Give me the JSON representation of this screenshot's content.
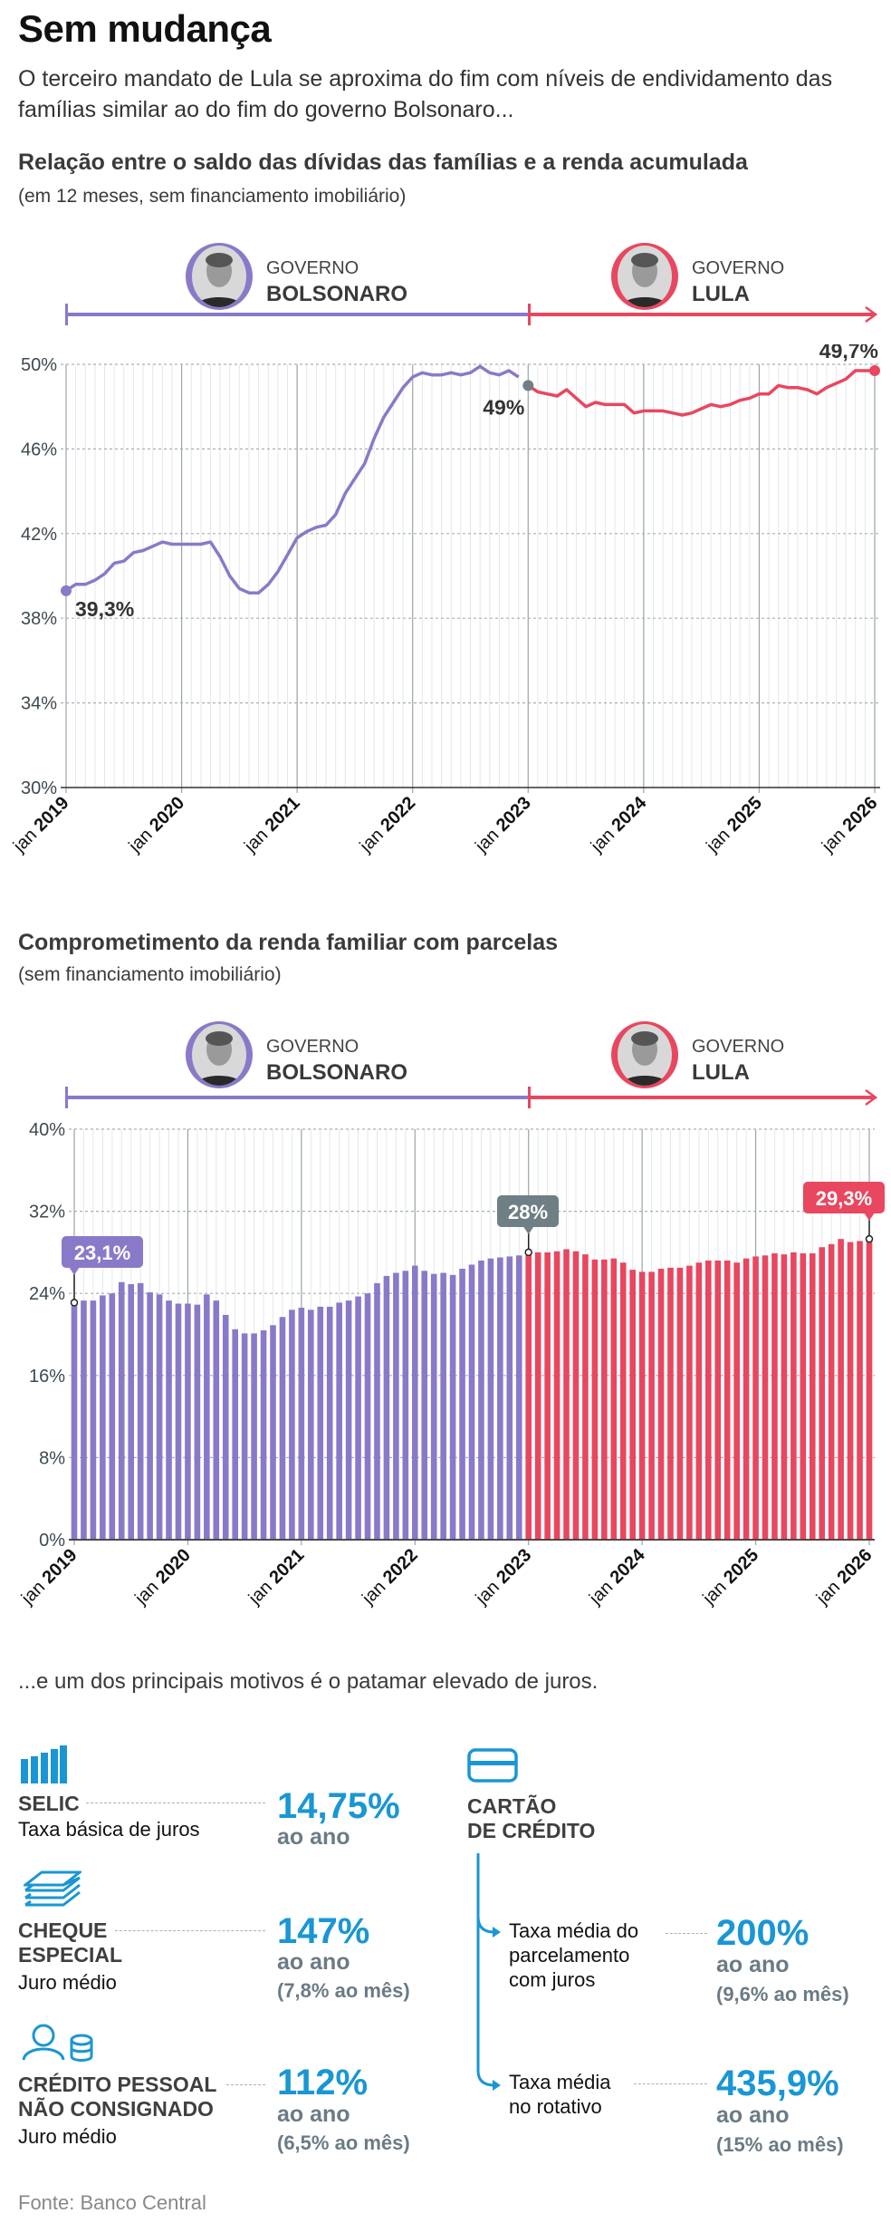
{
  "header": {
    "title": "Sem mudança",
    "subtitle": "O terceiro mandato de Lula se aproxima do fim com níveis de endividamento das famílias similar ao do fim do governo Bolsonaro..."
  },
  "governments": [
    {
      "prefix": "GOVERNO",
      "name": "BOLSONARO",
      "color": "#8a79c9",
      "photo_icon": "bolsonaro-portrait"
    },
    {
      "prefix": "GOVERNO",
      "name": "LULA",
      "color": "#e8475f",
      "photo_icon": "lula-portrait"
    }
  ],
  "colors": {
    "bolsonaro": "#8a79c9",
    "lula": "#e8475f",
    "transition": "#6e7f86",
    "accent": "#1a96d4",
    "unit_gray": "#6b7b85"
  },
  "chart_data": [
    {
      "type": "line",
      "title": "Relação entre o saldo das dívidas das famílias e a renda acumulada",
      "subtitle": "(em 12 meses, sem financiamento imobiliário)",
      "x_start": "jan 2019",
      "x_end": "jan 2026",
      "frequency": "monthly",
      "ylim": [
        30,
        50
      ],
      "y_ticks": [
        "30%",
        "34%",
        "38%",
        "42%",
        "46%",
        "50%"
      ],
      "y_tick_values": [
        30,
        34,
        38,
        42,
        46,
        50
      ],
      "x_tick_labels": [
        "jan 2019",
        "jan 2020",
        "jan 2021",
        "jan 2022",
        "jan 2023",
        "jan 2024",
        "jan 2025",
        "jan 2026"
      ],
      "grid": true,
      "values": [
        39.3,
        39.6,
        39.6,
        39.8,
        40.1,
        40.6,
        40.7,
        41.1,
        41.2,
        41.4,
        41.6,
        41.5,
        41.5,
        41.5,
        41.5,
        41.6,
        40.9,
        40.0,
        39.4,
        39.2,
        39.2,
        39.6,
        40.2,
        41.0,
        41.8,
        42.1,
        42.3,
        42.4,
        42.9,
        43.9,
        44.6,
        45.3,
        46.5,
        47.5,
        48.2,
        48.9,
        49.4,
        49.6,
        49.5,
        49.5,
        49.6,
        49.5,
        49.6,
        49.9,
        49.6,
        49.5,
        49.7,
        49.4,
        49.0,
        48.7,
        48.6,
        48.5,
        48.8,
        48.4,
        48.0,
        48.2,
        48.1,
        48.1,
        48.1,
        47.7,
        47.8,
        47.8,
        47.8,
        47.7,
        47.6,
        47.7,
        47.9,
        48.1,
        48.0,
        48.1,
        48.3,
        48.4,
        48.6,
        48.6,
        49.0,
        48.9,
        48.9,
        48.8,
        48.6,
        48.9,
        49.1,
        49.3,
        49.7,
        49.7,
        49.7
      ],
      "annotations": [
        {
          "month": "jan 2019",
          "label": "39,3%"
        },
        {
          "month": "jan 2023",
          "label": "49%"
        },
        {
          "month": "jan 2026",
          "label": "49,7%"
        }
      ]
    },
    {
      "type": "bar",
      "title": "Comprometimento da renda familiar com parcelas",
      "subtitle": "(sem financiamento imobiliário)",
      "x_start": "jan 2019",
      "x_end": "jan 2026",
      "frequency": "monthly",
      "ylim": [
        0,
        40
      ],
      "y_ticks": [
        "0%",
        "8%",
        "16%",
        "24%",
        "32%",
        "40%"
      ],
      "y_tick_values": [
        0,
        8,
        16,
        24,
        32,
        40
      ],
      "x_tick_labels": [
        "jan 2019",
        "jan 2020",
        "jan 2021",
        "jan 2022",
        "jan 2023",
        "jan 2024",
        "jan 2025",
        "jan 2026"
      ],
      "grid": true,
      "values": [
        23.1,
        23.3,
        23.3,
        23.8,
        24.0,
        25.1,
        24.9,
        25.0,
        24.1,
        23.9,
        23.3,
        23.0,
        23.0,
        22.9,
        23.9,
        23.3,
        21.9,
        20.5,
        20.1,
        20.1,
        20.4,
        20.9,
        21.7,
        22.4,
        22.6,
        22.4,
        22.7,
        22.7,
        23.1,
        23.3,
        23.7,
        24.0,
        25.0,
        25.7,
        26.0,
        26.2,
        26.7,
        26.2,
        25.9,
        26.0,
        25.8,
        26.4,
        26.8,
        27.2,
        27.4,
        27.5,
        27.6,
        27.7,
        28.0,
        28.0,
        28.0,
        28.1,
        28.3,
        28.1,
        27.8,
        27.3,
        27.3,
        27.4,
        27.0,
        26.3,
        26.1,
        26.1,
        26.4,
        26.5,
        26.5,
        26.7,
        27.0,
        27.2,
        27.2,
        27.2,
        27.0,
        27.4,
        27.6,
        27.7,
        27.9,
        27.8,
        28.0,
        27.9,
        27.9,
        28.5,
        28.8,
        29.3,
        29.0,
        29.1,
        29.3
      ],
      "annotations": [
        {
          "month": "jan 2019",
          "label": "23,1%"
        },
        {
          "month": "jan 2023",
          "label": "28%"
        },
        {
          "month": "jan 2026",
          "label": "29,3%"
        }
      ]
    }
  ],
  "rates": {
    "intro": "...e um dos principais motivos é o patamar elevado de juros.",
    "selic": {
      "icon": "bar-signal-icon",
      "name": "SELIC",
      "desc": "Taxa básica de juros",
      "value": "14,75%",
      "unit": "ao ano"
    },
    "cheque": {
      "icon": "stacked-sheets-icon",
      "name1": "CHEQUE",
      "name2": "ESPECIAL",
      "desc": "Juro médio",
      "value": "147%",
      "unit": "ao ano",
      "monthly": "(7,8% ao mês)"
    },
    "pessoal": {
      "icon": "person-coins-icon",
      "name1": "CRÉDITO PESSOAL",
      "name2": "NÃO CONSIGNADO",
      "desc": "Juro médio",
      "value": "112%",
      "unit": "ao ano",
      "monthly": "(6,5% ao mês)"
    },
    "cartao": {
      "icon": "credit-card-icon",
      "name1": "CARTÃO",
      "name2": "DE CRÉDITO",
      "parcelado": {
        "l1": "Taxa média do",
        "l2": "parcelamento",
        "l3": "com juros",
        "value": "200%",
        "unit": "ao ano",
        "monthly": "(9,6% ao mês)"
      },
      "rotativo": {
        "l1": "Taxa média",
        "l2": "no rotativo",
        "value": "435,9%",
        "unit": "ao ano",
        "monthly": "(15% ao mês)"
      }
    }
  },
  "source": "Fonte: Banco Central"
}
